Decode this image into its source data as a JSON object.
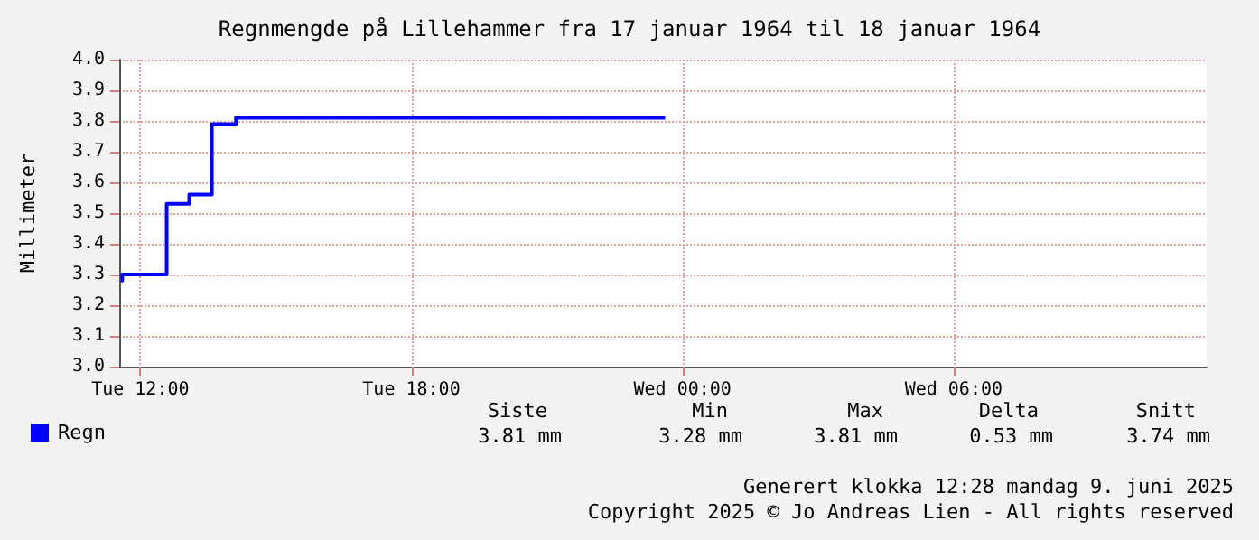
{
  "chart_data": {
    "type": "step",
    "title": "Regnmengde på Lillehammer fra 17 januar 1964 til 18 januar 1964",
    "ylabel": "Millimeter",
    "x": [
      "1964-01-17T11:34",
      "1964-01-17T11:36",
      "1964-01-17T12:35",
      "1964-01-17T13:05",
      "1964-01-17T13:35",
      "1964-01-17T14:07",
      "1964-01-17T23:37"
    ],
    "series": [
      {
        "name": "Regn",
        "color": "#0000ff",
        "values": [
          3.28,
          3.3,
          3.53,
          3.56,
          3.79,
          3.81,
          3.81
        ]
      }
    ],
    "xlim": [
      "1964-01-17T11:32",
      "1964-01-18T11:36"
    ],
    "xticks": [
      {
        "value": "1964-01-17T12:00",
        "label": "Tue 12:00"
      },
      {
        "value": "1964-01-17T18:00",
        "label": "Tue 18:00"
      },
      {
        "value": "1964-01-18T00:00",
        "label": "Wed 00:00"
      },
      {
        "value": "1964-01-18T06:00",
        "label": "Wed 06:00"
      }
    ],
    "ylim": [
      3.0,
      4.0
    ],
    "yticks": [
      {
        "value": 3.0,
        "label": "3.0"
      },
      {
        "value": 3.1,
        "label": "3.1"
      },
      {
        "value": 3.2,
        "label": "3.2"
      },
      {
        "value": 3.3,
        "label": "3.3"
      },
      {
        "value": 3.4,
        "label": "3.4"
      },
      {
        "value": 3.5,
        "label": "3.5"
      },
      {
        "value": 3.6,
        "label": "3.6"
      },
      {
        "value": 3.7,
        "label": "3.7"
      },
      {
        "value": 3.8,
        "label": "3.8"
      },
      {
        "value": 3.9,
        "label": "3.9"
      },
      {
        "value": 4.0,
        "label": "4.0"
      }
    ],
    "grid": true,
    "legend": "bottom left",
    "line_style": "solid",
    "marker": "none",
    "annotations": [
      "Siste",
      "Min",
      "Max",
      "Delta",
      "Snitt",
      "3.81 mm",
      "3.28 mm",
      "3.81 mm",
      "0.53 mm",
      "3.74 mm",
      "Generert klokka 12:28 mandag 9. juni 2025",
      "Copyright 2025 © Jo Andreas Lien - All rights reserved"
    ]
  }
}
